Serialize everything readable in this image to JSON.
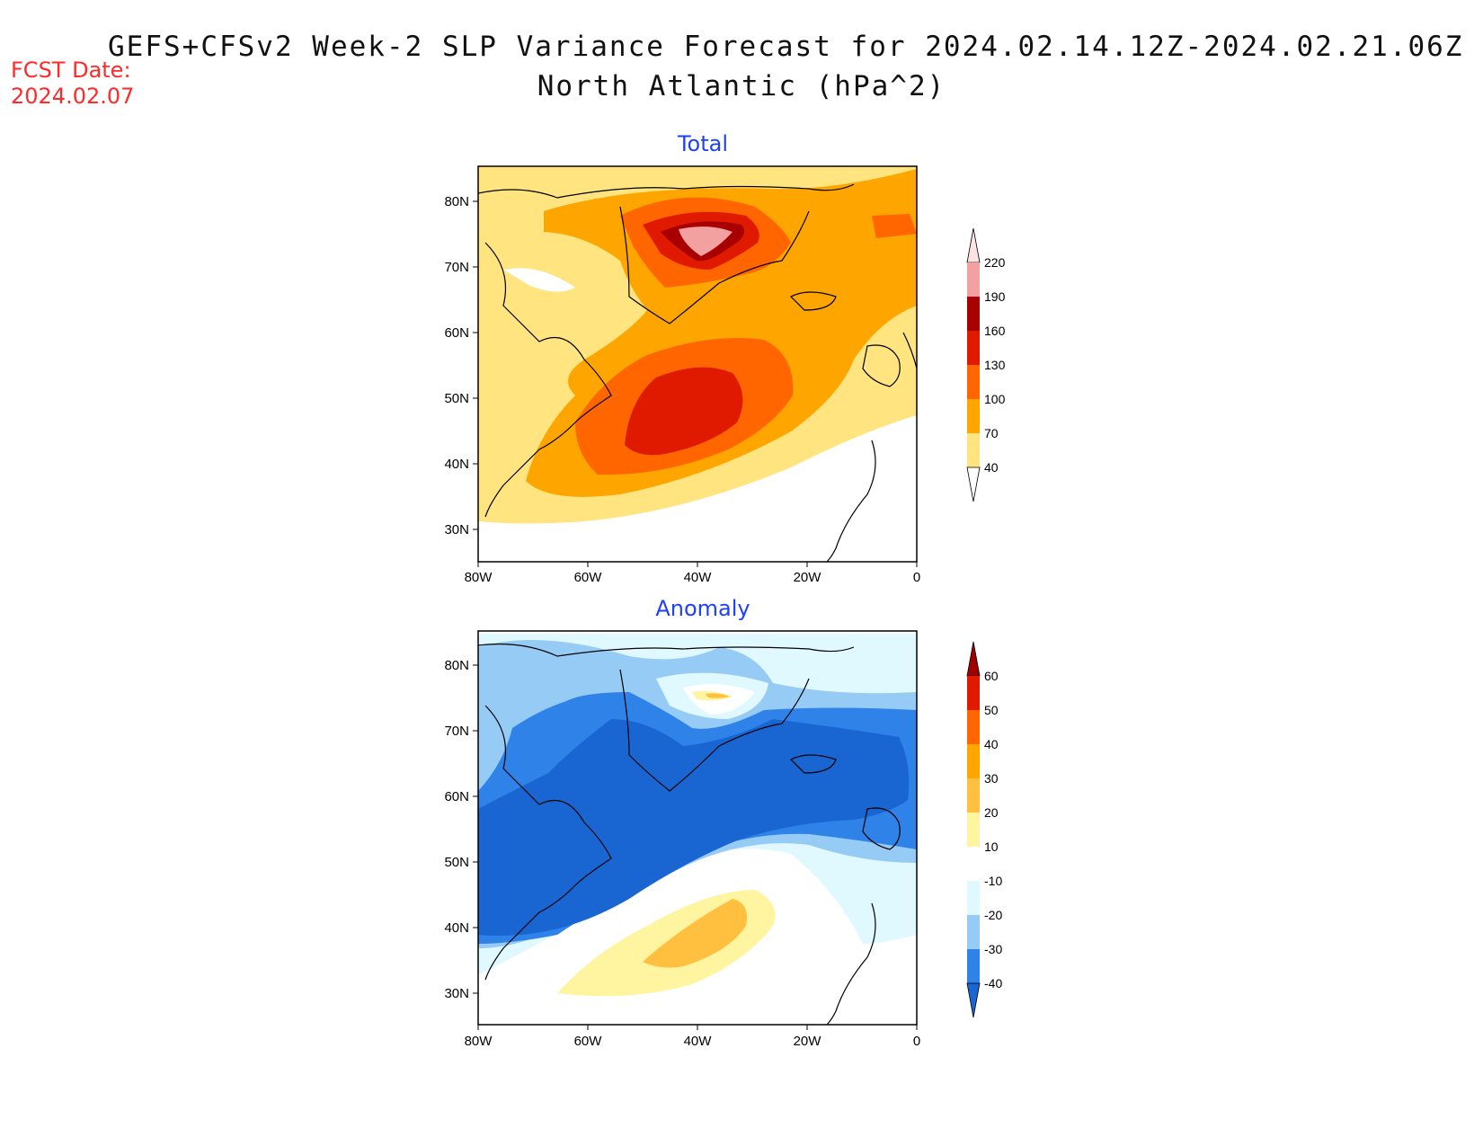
{
  "header": {
    "title_line1": "GEFS+CFSv2 Week-2 SLP Variance Forecast for 2024.02.14.12Z-2024.02.21.06Z",
    "title_line2": "North Atlantic (hPa^2)",
    "fcst_label": "FCST Date:",
    "fcst_date": "2024.02.07"
  },
  "panels": [
    {
      "title": "Total",
      "x_ticks": [
        "80W",
        "60W",
        "40W",
        "20W",
        "0"
      ],
      "y_ticks": [
        "80N",
        "70N",
        "60N",
        "50N",
        "40N",
        "30N"
      ],
      "colorbar": {
        "levels": [
          "220",
          "190",
          "160",
          "130",
          "100",
          "70",
          "40"
        ],
        "colors": [
          "#fde4e4",
          "#f2a0a0",
          "#a80000",
          "#e01a00",
          "#ff6600",
          "#ffa500",
          "#ffe480"
        ]
      }
    },
    {
      "title": "Anomaly",
      "x_ticks": [
        "80W",
        "60W",
        "40W",
        "20W",
        "0"
      ],
      "y_ticks": [
        "80N",
        "70N",
        "60N",
        "50N",
        "40N",
        "30N"
      ],
      "colorbar": {
        "levels": [
          "60",
          "50",
          "40",
          "30",
          "20",
          "10",
          "-10",
          "-20",
          "-30",
          "-40"
        ],
        "colors": [
          "#a00000",
          "#e01a00",
          "#ff6600",
          "#ffa500",
          "#ffc040",
          "#fff5a0",
          "#ffffff",
          "#e0f8ff",
          "#96cbf5",
          "#2e82e8",
          "#1966d2"
        ]
      }
    }
  ],
  "colors": {
    "title_text": "#111111",
    "fcst_text": "#ff2a2a",
    "panel_title": "#1f3fff"
  }
}
